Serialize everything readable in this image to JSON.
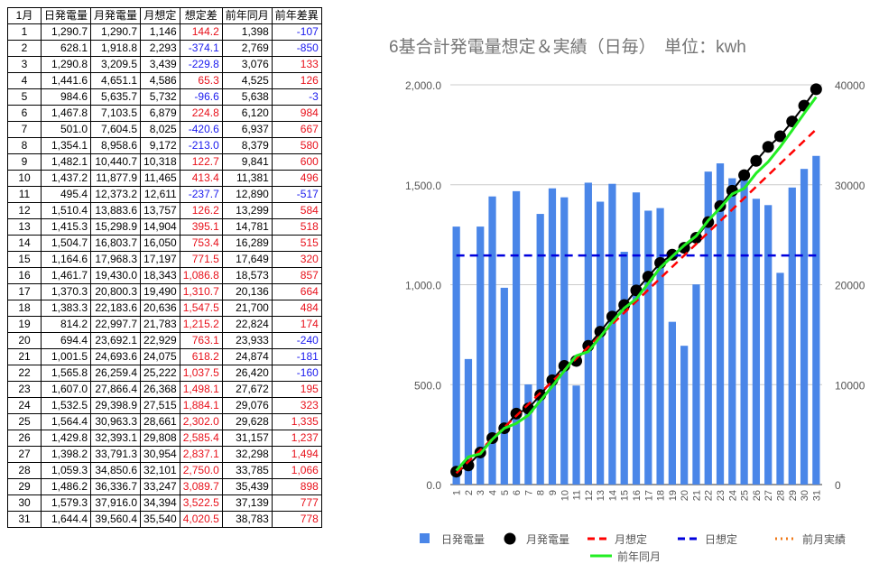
{
  "table": {
    "headers": [
      "1月",
      "日発電量",
      "月発電量",
      "月想定",
      "想定差",
      "前年同月",
      "前年差異"
    ],
    "rows": [
      [
        "1",
        "1,290.7",
        "1,290.7",
        "1,146",
        "144.2",
        "1,398",
        "-107"
      ],
      [
        "2",
        "628.1",
        "1,918.8",
        "2,293",
        "-374.1",
        "2,769",
        "-850"
      ],
      [
        "3",
        "1,290.8",
        "3,209.5",
        "3,439",
        "-229.8",
        "3,076",
        "133"
      ],
      [
        "4",
        "1,441.6",
        "4,651.1",
        "4,586",
        "65.3",
        "4,525",
        "126"
      ],
      [
        "5",
        "984.6",
        "5,635.7",
        "5,732",
        "-96.6",
        "5,638",
        "-3"
      ],
      [
        "6",
        "1,467.8",
        "7,103.5",
        "6,879",
        "224.8",
        "6,120",
        "984"
      ],
      [
        "7",
        "501.0",
        "7,604.5",
        "8,025",
        "-420.6",
        "6,937",
        "667"
      ],
      [
        "8",
        "1,354.1",
        "8,958.6",
        "9,172",
        "-213.0",
        "8,379",
        "580"
      ],
      [
        "9",
        "1,482.1",
        "10,440.7",
        "10,318",
        "122.7",
        "9,841",
        "600"
      ],
      [
        "10",
        "1,437.2",
        "11,877.9",
        "11,465",
        "413.4",
        "11,381",
        "496"
      ],
      [
        "11",
        "495.4",
        "12,373.2",
        "12,611",
        "-237.7",
        "12,890",
        "-517"
      ],
      [
        "12",
        "1,510.4",
        "13,883.6",
        "13,757",
        "126.2",
        "13,299",
        "584"
      ],
      [
        "13",
        "1,415.3",
        "15,298.9",
        "14,904",
        "395.1",
        "14,781",
        "518"
      ],
      [
        "14",
        "1,504.7",
        "16,803.7",
        "16,050",
        "753.4",
        "16,289",
        "515"
      ],
      [
        "15",
        "1,164.6",
        "17,968.3",
        "17,197",
        "771.5",
        "17,649",
        "320"
      ],
      [
        "16",
        "1,461.7",
        "19,430.0",
        "18,343",
        "1,086.8",
        "18,573",
        "857"
      ],
      [
        "17",
        "1,370.3",
        "20,800.3",
        "19,490",
        "1,310.7",
        "20,136",
        "664"
      ],
      [
        "18",
        "1,383.3",
        "22,183.6",
        "20,636",
        "1,547.5",
        "21,700",
        "484"
      ],
      [
        "19",
        "814.2",
        "22,997.7",
        "21,783",
        "1,215.2",
        "22,824",
        "174"
      ],
      [
        "20",
        "694.4",
        "23,692.1",
        "22,929",
        "763.1",
        "23,933",
        "-240"
      ],
      [
        "21",
        "1,001.5",
        "24,693.6",
        "24,075",
        "618.2",
        "24,874",
        "-181"
      ],
      [
        "22",
        "1,565.8",
        "26,259.4",
        "25,222",
        "1,037.5",
        "26,420",
        "-160"
      ],
      [
        "23",
        "1,607.0",
        "27,866.4",
        "26,368",
        "1,498.1",
        "27,672",
        "195"
      ],
      [
        "24",
        "1,532.5",
        "29,398.9",
        "27,515",
        "1,884.1",
        "29,076",
        "323"
      ],
      [
        "25",
        "1,564.4",
        "30,963.3",
        "28,661",
        "2,302.0",
        "29,628",
        "1,335"
      ],
      [
        "26",
        "1,429.8",
        "32,393.1",
        "29,808",
        "2,585.4",
        "31,157",
        "1,237"
      ],
      [
        "27",
        "1,398.2",
        "33,791.3",
        "30,954",
        "2,837.1",
        "32,298",
        "1,494"
      ],
      [
        "28",
        "1,059.3",
        "34,850.6",
        "32,101",
        "2,750.0",
        "33,785",
        "1,066"
      ],
      [
        "29",
        "1,486.2",
        "36,336.7",
        "33,247",
        "3,089.7",
        "35,439",
        "898"
      ],
      [
        "30",
        "1,579.3",
        "37,916.0",
        "34,394",
        "3,522.5",
        "37,139",
        "777"
      ],
      [
        "31",
        "1,644.4",
        "39,560.4",
        "35,540",
        "4,020.5",
        "38,783",
        "778"
      ]
    ]
  },
  "colors": {
    "positive": "#e8101a",
    "negative": "#1a1aee"
  },
  "chart_data": {
    "type": "bar",
    "title": "6基合計発電量想定＆実績（日毎）　単位：kwh",
    "categories": [
      "1",
      "2",
      "3",
      "4",
      "5",
      "6",
      "7",
      "8",
      "9",
      "10",
      "11",
      "12",
      "13",
      "14",
      "15",
      "16",
      "17",
      "18",
      "19",
      "20",
      "21",
      "22",
      "23",
      "24",
      "25",
      "26",
      "27",
      "28",
      "29",
      "30",
      "31"
    ],
    "y_left": {
      "ticks": [
        "0.0",
        "500.0",
        "1,000.0",
        "1,500.0",
        "2,000.0"
      ],
      "ylim": [
        0,
        2000
      ]
    },
    "y_right": {
      "ticks": [
        "0",
        "10000",
        "20000",
        "30000",
        "40000"
      ],
      "ylim": [
        0,
        40000
      ]
    },
    "grid": true,
    "legend_position": "bottom",
    "series": [
      {
        "name": "日発電量",
        "type": "bar",
        "axis": "left",
        "color": "#4a86e8",
        "values": [
          1290.7,
          628.1,
          1290.8,
          1441.6,
          984.6,
          1467.8,
          501.0,
          1354.1,
          1482.1,
          1437.2,
          495.4,
          1510.4,
          1415.3,
          1504.7,
          1164.6,
          1461.7,
          1370.3,
          1383.3,
          814.2,
          694.4,
          1001.5,
          1565.8,
          1607.0,
          1532.5,
          1564.4,
          1429.8,
          1398.2,
          1059.3,
          1486.2,
          1579.3,
          1644.4
        ]
      },
      {
        "name": "月発電量",
        "type": "line-markers",
        "axis": "right",
        "color": "#000000",
        "values": [
          1290.7,
          1918.8,
          3209.5,
          4651.1,
          5635.7,
          7103.5,
          7604.5,
          8958.6,
          10440.7,
          11877.9,
          12373.2,
          13883.6,
          15298.9,
          16803.7,
          17968.3,
          19430.0,
          20800.3,
          22183.6,
          22997.7,
          23692.1,
          24693.6,
          26259.4,
          27866.4,
          29398.9,
          30963.3,
          32393.1,
          33791.3,
          34850.6,
          36336.7,
          37916.0,
          39560.4
        ]
      },
      {
        "name": "月想定",
        "type": "dashed-line",
        "axis": "right",
        "color": "#ff0000",
        "values": [
          1146,
          2293,
          3439,
          4586,
          5732,
          6879,
          8025,
          9172,
          10318,
          11465,
          12611,
          13757,
          14904,
          16050,
          17197,
          18343,
          19490,
          20636,
          21783,
          22929,
          24075,
          25222,
          26368,
          27515,
          28661,
          29808,
          30954,
          32101,
          33247,
          34394,
          35540
        ]
      },
      {
        "name": "日想定",
        "type": "dashed-line",
        "axis": "left",
        "color": "#0000dd",
        "values": [
          1146,
          1146,
          1146,
          1146,
          1146,
          1146,
          1146,
          1146,
          1146,
          1146,
          1146,
          1146,
          1146,
          1146,
          1146,
          1146,
          1146,
          1146,
          1146,
          1146,
          1146,
          1146,
          1146,
          1146,
          1146,
          1146,
          1146,
          1146,
          1146,
          1146,
          1146
        ]
      },
      {
        "name": "前月実績",
        "type": "dotted-line",
        "axis": "right",
        "color": "#f07a1a",
        "values": [
          null,
          null,
          null,
          null,
          null,
          null,
          null,
          null,
          null,
          null,
          null,
          null,
          null,
          null,
          null,
          null,
          null,
          null,
          null,
          null,
          null,
          null,
          null,
          null,
          null,
          null,
          null,
          null,
          null,
          null,
          null
        ]
      },
      {
        "name": "前年同月",
        "type": "line",
        "axis": "right",
        "color": "#22ee22",
        "values": [
          1398,
          2769,
          3076,
          4525,
          5638,
          6120,
          6937,
          8379,
          9841,
          11381,
          12890,
          13299,
          14781,
          16289,
          17649,
          18573,
          20136,
          21700,
          22824,
          23933,
          24874,
          26420,
          27672,
          29076,
          29628,
          31157,
          32298,
          33785,
          35439,
          37139,
          38783
        ]
      }
    ]
  }
}
